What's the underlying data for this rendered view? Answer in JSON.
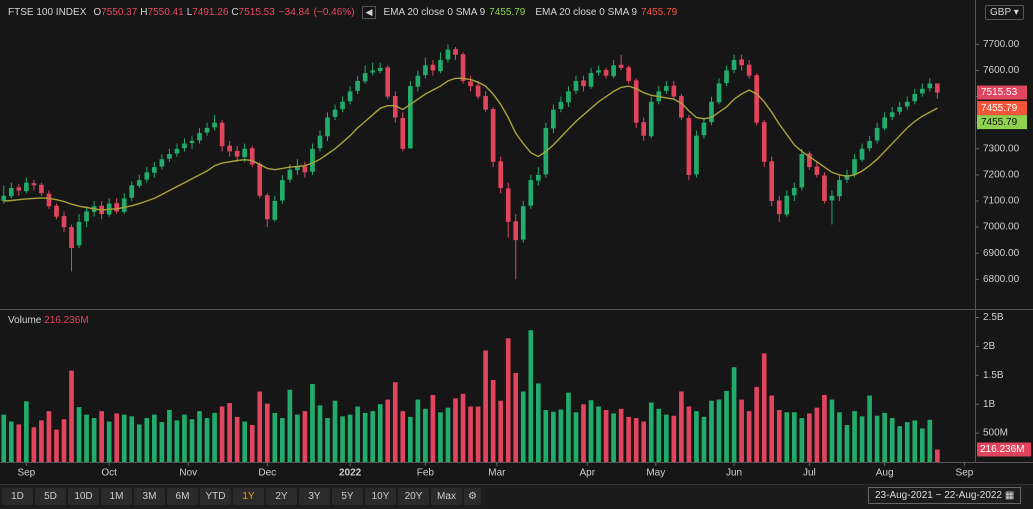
{
  "chart_data": {
    "type": "candlestick",
    "title": "FTSE 100 INDEX",
    "readout": [
      {
        "label": "O",
        "value": 7550.37
      },
      {
        "label": "H",
        "value": 7550.41
      },
      {
        "label": "L",
        "value": 7491.26
      },
      {
        "label": "C",
        "value": 7515.53
      }
    ],
    "change": {
      "value": -34.84,
      "label": "−34.84"
    },
    "change_pct": {
      "value": -0.46,
      "label": "(−0.46%)"
    },
    "indicators": [
      {
        "name": "EMA 20 close 0 SMA 9",
        "value": 7455.79,
        "color": "#8fd14f"
      },
      {
        "name": "EMA 20 close 0 SMA 9",
        "value": 7455.79,
        "color": "#f2553a"
      }
    ],
    "currency": "GBP",
    "up_color": "#22ab6a",
    "down_color": "#e0455d",
    "xlim": [
      -0.5,
      129
    ],
    "xticks": [
      {
        "value": 3,
        "label": "Sep"
      },
      {
        "value": 14,
        "label": "Oct"
      },
      {
        "value": 24.5,
        "label": "Nov"
      },
      {
        "value": 35,
        "label": "Dec"
      },
      {
        "value": 46,
        "label": "2022"
      },
      {
        "value": 56,
        "label": "Feb"
      },
      {
        "value": 65.5,
        "label": "Mar"
      },
      {
        "value": 77.5,
        "label": "Apr"
      },
      {
        "value": 86.6,
        "label": "May"
      },
      {
        "value": 97,
        "label": "Jun"
      },
      {
        "value": 107,
        "label": "Jul"
      },
      {
        "value": 117,
        "label": "Aug"
      },
      {
        "value": 127.6,
        "label": "Sep"
      }
    ],
    "ylim": [
      6690,
      7870
    ],
    "yticks": [
      {
        "value": 6800,
        "label": "6800.00"
      },
      {
        "value": 6900,
        "label": "6900.00"
      },
      {
        "value": 7000,
        "label": "7000.00"
      },
      {
        "value": 7100,
        "label": "7100.00"
      },
      {
        "value": 7200,
        "label": "7200.00"
      },
      {
        "value": 7300,
        "label": "7300.00"
      },
      {
        "value": 7400,
        "label": "7400.00"
      },
      {
        "value": 7500,
        "label": "7500.00"
      },
      {
        "value": 7600,
        "label": "7600.00"
      },
      {
        "value": 7700,
        "label": "7700.00"
      }
    ],
    "open": [
      7100,
      7118,
      7152,
      7138,
      7168,
      7162,
      7128,
      7082,
      7042,
      7000,
      6930,
      7022,
      7058,
      7082,
      7048,
      7092,
      7058,
      7112,
      7158,
      7182,
      7208,
      7232,
      7262,
      7282,
      7302,
      7322,
      7332,
      7362,
      7382,
      7400,
      7312,
      7292,
      7268,
      7302,
      7242,
      7122,
      7028,
      7102,
      7182,
      7218,
      7232,
      7212,
      7302,
      7348,
      7422,
      7452,
      7482,
      7522,
      7558,
      7592,
      7598,
      7612,
      7502,
      7418,
      7302,
      7538,
      7582,
      7622,
      7598,
      7642,
      7682,
      7662,
      7558,
      7542,
      7502,
      7452,
      7252,
      7148,
      7022,
      6952,
      7082,
      7178,
      7202,
      7378,
      7452,
      7478,
      7522,
      7562,
      7538,
      7592,
      7602,
      7578,
      7622,
      7612,
      7562,
      7402,
      7348,
      7482,
      7522,
      7542,
      7502,
      7418,
      7202,
      7352,
      7402,
      7478,
      7552,
      7602,
      7642,
      7622,
      7582,
      7402,
      7252,
      7102,
      7048,
      7122,
      7152,
      7282,
      7232,
      7198,
      7102,
      7118,
      7182,
      7202,
      7258,
      7302,
      7332,
      7378,
      7422,
      7442,
      7462,
      7482,
      7512,
      7532,
      7550.37
    ],
    "high": [
      7160,
      7170,
      7165,
      7190,
      7180,
      7170,
      7140,
      7090,
      7060,
      7010,
      7050,
      7080,
      7100,
      7100,
      7110,
      7110,
      7130,
      7175,
      7200,
      7230,
      7250,
      7280,
      7300,
      7320,
      7340,
      7350,
      7380,
      7400,
      7430,
      7410,
      7330,
      7310,
      7320,
      7310,
      7250,
      7130,
      7120,
      7200,
      7240,
      7260,
      7250,
      7320,
      7370,
      7440,
      7470,
      7500,
      7540,
      7580,
      7620,
      7630,
      7630,
      7620,
      7520,
      7440,
      7560,
      7600,
      7650,
      7640,
      7670,
      7700,
      7690,
      7670,
      7580,
      7560,
      7520,
      7460,
      7270,
      7170,
      7050,
      7100,
      7200,
      7230,
      7400,
      7470,
      7500,
      7540,
      7580,
      7580,
      7610,
      7620,
      7610,
      7640,
      7660,
      7620,
      7570,
      7420,
      7500,
      7540,
      7560,
      7560,
      7510,
      7430,
      7370,
      7420,
      7500,
      7570,
      7620,
      7660,
      7660,
      7640,
      7590,
      7410,
      7270,
      7120,
      7140,
      7170,
      7300,
      7290,
      7250,
      7210,
      7140,
      7200,
      7220,
      7280,
      7320,
      7350,
      7400,
      7440,
      7460,
      7480,
      7500,
      7530,
      7550,
      7570,
      7550.41
    ],
    "low": [
      7090,
      7110,
      7120,
      7130,
      7140,
      7120,
      7070,
      7030,
      6980,
      6830,
      6920,
      7000,
      7040,
      7030,
      7040,
      7050,
      7050,
      7100,
      7150,
      7170,
      7190,
      7220,
      7250,
      7270,
      7290,
      7300,
      7320,
      7350,
      7370,
      7290,
      7270,
      7250,
      7250,
      7230,
      7110,
      7000,
      7020,
      7090,
      7170,
      7200,
      7190,
      7200,
      7290,
      7330,
      7410,
      7440,
      7470,
      7510,
      7550,
      7580,
      7590,
      7490,
      7400,
      7290,
      7300,
      7520,
      7570,
      7580,
      7590,
      7630,
      7640,
      7550,
      7520,
      7490,
      7440,
      7230,
      7130,
      6960,
      6800,
      6940,
      7070,
      7160,
      7190,
      7360,
      7440,
      7460,
      7510,
      7520,
      7530,
      7580,
      7570,
      7570,
      7600,
      7550,
      7380,
      7330,
      7340,
      7470,
      7510,
      7490,
      7410,
      7180,
      7190,
      7340,
      7390,
      7470,
      7540,
      7590,
      7600,
      7570,
      7390,
      7230,
      7080,
      7020,
      7040,
      7100,
      7140,
      7220,
      7190,
      7090,
      7010,
      7100,
      7170,
      7190,
      7250,
      7290,
      7320,
      7370,
      7410,
      7430,
      7450,
      7470,
      7500,
      7520,
      7491.26
    ],
    "close": [
      7120,
      7150,
      7140,
      7170,
      7160,
      7130,
      7080,
      7040,
      7000,
      6920,
      7020,
      7060,
      7080,
      7050,
      7090,
      7060,
      7110,
      7160,
      7180,
      7210,
      7230,
      7260,
      7280,
      7300,
      7320,
      7330,
      7360,
      7380,
      7400,
      7310,
      7290,
      7270,
      7300,
      7240,
      7120,
      7030,
      7100,
      7180,
      7220,
      7230,
      7210,
      7300,
      7350,
      7420,
      7450,
      7480,
      7520,
      7560,
      7590,
      7600,
      7610,
      7500,
      7420,
      7300,
      7540,
      7580,
      7620,
      7600,
      7640,
      7680,
      7660,
      7560,
      7540,
      7500,
      7450,
      7250,
      7150,
      7020,
      6950,
      7080,
      7180,
      7200,
      7380,
      7450,
      7480,
      7520,
      7560,
      7540,
      7590,
      7600,
      7580,
      7620,
      7610,
      7560,
      7400,
      7350,
      7480,
      7520,
      7540,
      7500,
      7420,
      7200,
      7350,
      7400,
      7480,
      7550,
      7600,
      7640,
      7620,
      7580,
      7400,
      7250,
      7100,
      7050,
      7120,
      7150,
      7280,
      7230,
      7200,
      7100,
      7120,
      7180,
      7200,
      7260,
      7300,
      7330,
      7380,
      7420,
      7440,
      7460,
      7480,
      7510,
      7530,
      7550,
      7515.53
    ],
    "ema": {
      "color": "#a9a23a",
      "values": [
        7100,
        7102,
        7105,
        7108,
        7110,
        7112,
        7110,
        7105,
        7098,
        7088,
        7080,
        7075,
        7070,
        7065,
        7068,
        7070,
        7075,
        7082,
        7090,
        7100,
        7110,
        7125,
        7140,
        7155,
        7170,
        7185,
        7200,
        7215,
        7235,
        7245,
        7250,
        7255,
        7258,
        7255,
        7240,
        7225,
        7220,
        7225,
        7230,
        7232,
        7235,
        7245,
        7260,
        7280,
        7300,
        7325,
        7350,
        7380,
        7405,
        7430,
        7455,
        7465,
        7465,
        7450,
        7470,
        7490,
        7510,
        7525,
        7540,
        7560,
        7570,
        7570,
        7565,
        7555,
        7540,
        7510,
        7470,
        7420,
        7360,
        7320,
        7285,
        7270,
        7290,
        7315,
        7345,
        7375,
        7405,
        7430,
        7455,
        7480,
        7500,
        7520,
        7535,
        7540,
        7530,
        7515,
        7505,
        7500,
        7495,
        7490,
        7475,
        7445,
        7420,
        7415,
        7420,
        7440,
        7460,
        7490,
        7510,
        7525,
        7510,
        7480,
        7440,
        7395,
        7355,
        7315,
        7290,
        7270,
        7250,
        7230,
        7210,
        7200,
        7195,
        7200,
        7215,
        7235,
        7260,
        7290,
        7320,
        7350,
        7380,
        7405,
        7425,
        7440,
        7455.79
      ]
    },
    "price_tags": [
      {
        "value": 7515.53,
        "color": "#e0455d"
      },
      {
        "value": 7455.79,
        "color": "#f2553a"
      },
      {
        "value": 7455.79,
        "color": "#8fd14f"
      }
    ],
    "volume": {
      "title": "Volume",
      "readout": {
        "value": 216.236,
        "label": "216.236M"
      },
      "ylim": [
        0,
        2630
      ],
      "yticks": [
        {
          "value": 500,
          "label": "500M"
        },
        {
          "value": 1000,
          "label": "1B"
        },
        {
          "value": 1500,
          "label": "1.5B"
        },
        {
          "value": 2000,
          "label": "2B"
        },
        {
          "value": 2500,
          "label": "2.5B"
        }
      ],
      "values": [
        820,
        700,
        650,
        1050,
        600,
        720,
        880,
        560,
        740,
        1580,
        950,
        820,
        760,
        880,
        700,
        840,
        820,
        790,
        650,
        760,
        820,
        690,
        900,
        720,
        820,
        740,
        880,
        760,
        850,
        960,
        1020,
        780,
        700,
        640,
        1220,
        1010,
        850,
        760,
        1250,
        820,
        880,
        1350,
        980,
        760,
        1060,
        790,
        820,
        960,
        850,
        880,
        1000,
        1080,
        1380,
        880,
        780,
        1080,
        920,
        1160,
        860,
        940,
        1100,
        1180,
        960,
        960,
        1930,
        1420,
        1060,
        2140,
        1540,
        1220,
        2280,
        1360,
        900,
        870,
        910,
        1200,
        860,
        1000,
        1070,
        960,
        900,
        840,
        920,
        780,
        760,
        700,
        1030,
        920,
        820,
        800,
        1220,
        960,
        880,
        780,
        1060,
        1080,
        1230,
        1640,
        1080,
        880,
        1300,
        1880,
        1150,
        900,
        860,
        860,
        760,
        840,
        940,
        1160,
        1080,
        860,
        640,
        880,
        790,
        1150,
        800,
        850,
        760,
        620,
        690,
        720,
        580,
        730,
        216.236
      ]
    },
    "ranges": [
      "1D",
      "5D",
      "10D",
      "1M",
      "3M",
      "6M",
      "YTD",
      "1Y",
      "2Y",
      "3Y",
      "5Y",
      "10Y",
      "20Y",
      "Max"
    ],
    "active_range": "1Y",
    "date_range": "23-Aug-2021 − 22-Aug-2022"
  }
}
